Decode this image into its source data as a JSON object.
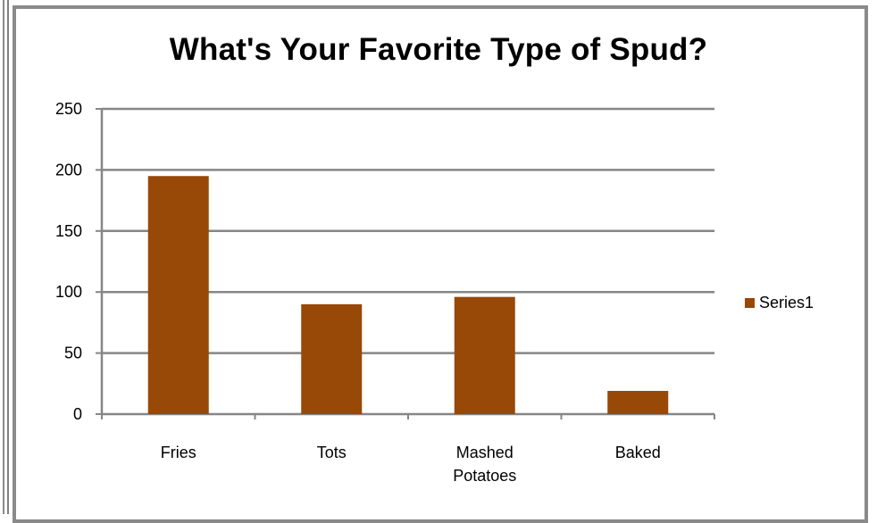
{
  "chart_data": {
    "type": "bar",
    "title": "What's Your Favorite Type of Spud?",
    "categories": [
      "Fries",
      "Tots",
      "Mashed Potatoes",
      "Baked"
    ],
    "category_lines": [
      [
        "Fries"
      ],
      [
        "Tots"
      ],
      [
        "Mashed",
        "Potatoes"
      ],
      [
        "Baked"
      ]
    ],
    "series": [
      {
        "name": "Series1",
        "values": [
          195,
          90,
          96,
          19
        ],
        "color": "#984807"
      }
    ],
    "xlabel": "",
    "ylabel": "",
    "ylim": [
      0,
      250
    ],
    "yticks": [
      0,
      50,
      100,
      150,
      200,
      250
    ],
    "grid": true,
    "legend_position": "right"
  }
}
